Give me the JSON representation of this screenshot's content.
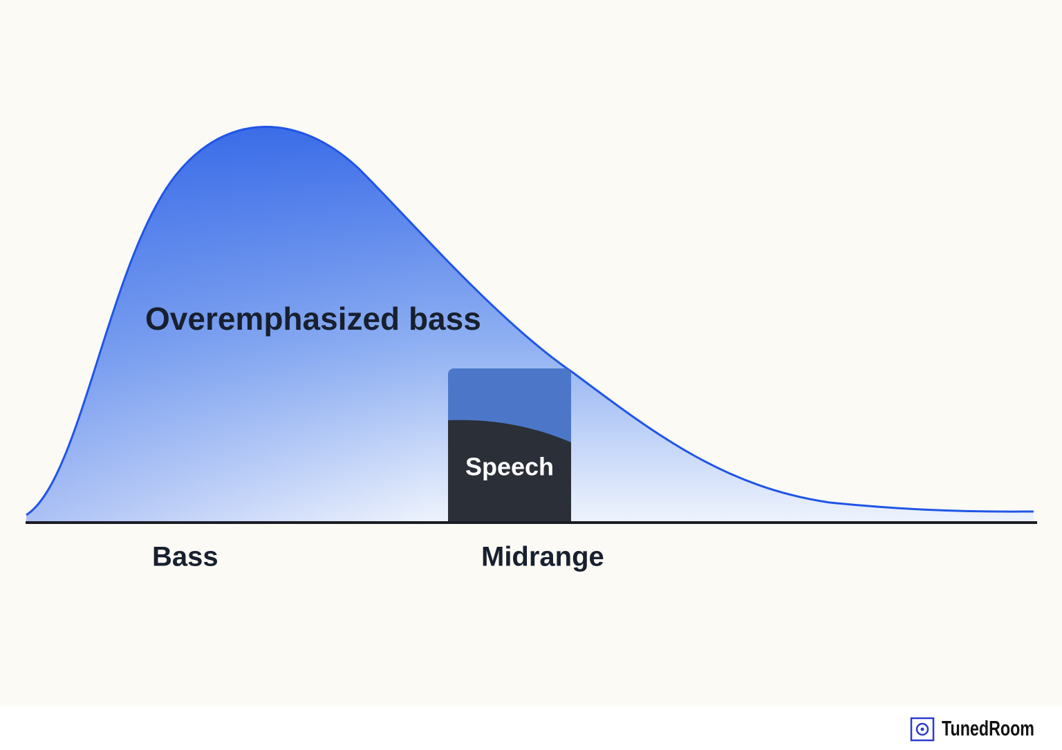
{
  "diagram": {
    "curve_label": "Overemphasized bass",
    "box_label": "Speech",
    "axis_labels": [
      "Bass",
      "Midrange"
    ]
  },
  "footer": {
    "brand": "TunedRoom"
  }
}
